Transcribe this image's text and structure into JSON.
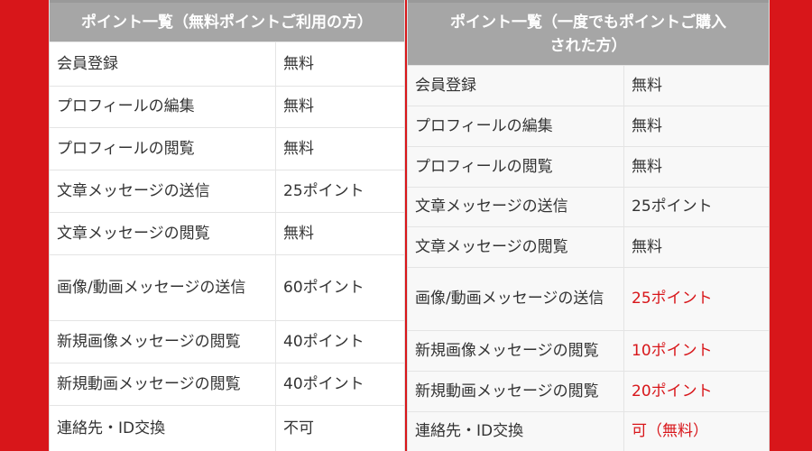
{
  "left": {
    "title": "ポイント一覧（無料ポイントご利用の方）",
    "rows": [
      [
        "会員登録",
        "無料"
      ],
      [
        "プロフィールの編集",
        "無料"
      ],
      [
        "プロフィールの閲覧",
        "無料"
      ],
      [
        "文章メッセージの送信",
        "25ポイント"
      ],
      [
        "文章メッセージの閲覧",
        "無料"
      ],
      [
        "画像/動画メッセージの送信",
        "60ポイント"
      ],
      [
        "新規画像メッセージの閲覧",
        "40ポイント"
      ],
      [
        "新規動画メッセージの閲覧",
        "40ポイント"
      ],
      [
        "連絡先・ID交換",
        "不可"
      ]
    ]
  },
  "right": {
    "title": "ポイント一覧（一度でもポイントご購入された方）",
    "rows": [
      [
        "会員登録",
        "無料"
      ],
      [
        "プロフィールの編集",
        "無料"
      ],
      [
        "プロフィールの閲覧",
        "無料"
      ],
      [
        "文章メッセージの送信",
        "25ポイント"
      ],
      [
        "文章メッセージの閲覧",
        "無料"
      ],
      [
        "画像/動画メッセージの送信",
        "25ポイント"
      ],
      [
        "新規画像メッセージの閲覧",
        "10ポイント"
      ],
      [
        "新規動画メッセージの閲覧",
        "20ポイント"
      ],
      [
        "連絡先・ID交換",
        "可（無料）"
      ]
    ]
  },
  "colors": {
    "background": "#d8161a",
    "highlight": "#d8161a",
    "header": "#a6a6a6"
  }
}
